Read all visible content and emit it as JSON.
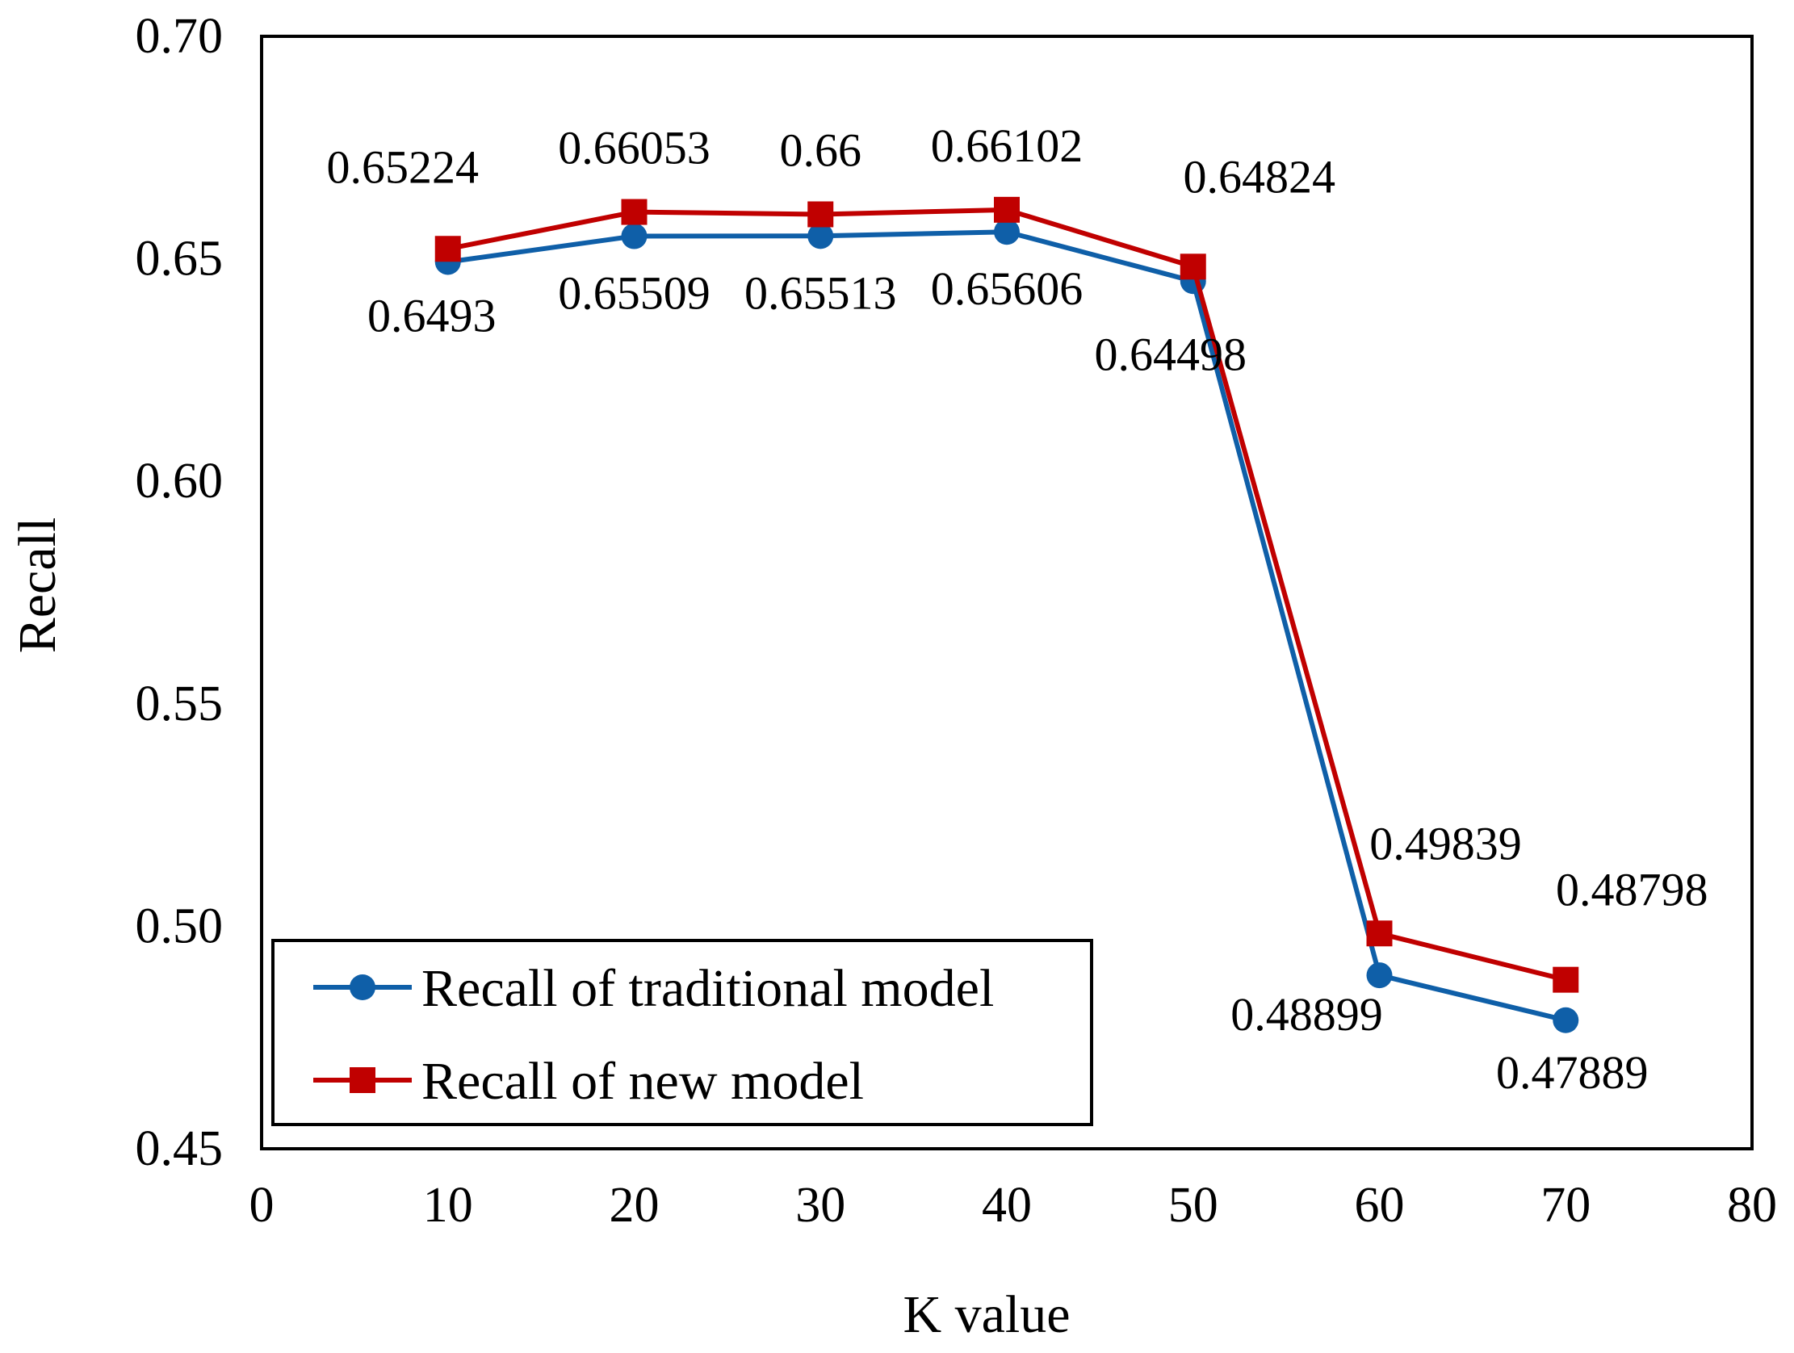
{
  "chart_data": {
    "type": "line",
    "title": "",
    "xlabel": "K value",
    "ylabel": "Recall",
    "xlim": [
      0,
      80
    ],
    "ylim": [
      0.45,
      0.7
    ],
    "x_ticks": [
      0,
      10,
      20,
      30,
      40,
      50,
      60,
      70,
      80
    ],
    "x_tick_labels": [
      "0",
      "10",
      "20",
      "30",
      "40",
      "50",
      "60",
      "70",
      "80"
    ],
    "y_ticks": [
      0.45,
      0.5,
      0.55,
      0.6,
      0.65,
      0.7
    ],
    "y_tick_labels": [
      "0.45",
      "0.50",
      "0.55",
      "0.60",
      "0.65",
      "0.70"
    ],
    "grid": false,
    "legend_position": "bottom-left",
    "x": [
      10,
      20,
      30,
      40,
      50,
      60,
      70
    ],
    "series": [
      {
        "name": "Recall of traditional model",
        "color": "#0f5fa8",
        "marker": "circle",
        "label_position": "below",
        "values": [
          0.6493,
          0.65509,
          0.65513,
          0.65606,
          0.64498,
          0.48899,
          0.47889
        ],
        "labels": [
          "0.6493",
          "0.65509",
          "0.65513",
          "0.65606",
          "0.64498",
          "0.48899",
          "0.47889"
        ]
      },
      {
        "name": "Recall of new model",
        "color": "#c00000",
        "marker": "square",
        "label_position": "above",
        "values": [
          0.65224,
          0.66053,
          0.66,
          0.66102,
          0.64824,
          0.49839,
          0.48798
        ],
        "labels": [
          "0.65224",
          "0.66053",
          "0.66",
          "0.66102",
          "0.64824",
          "0.49839",
          "0.48798"
        ]
      }
    ]
  }
}
